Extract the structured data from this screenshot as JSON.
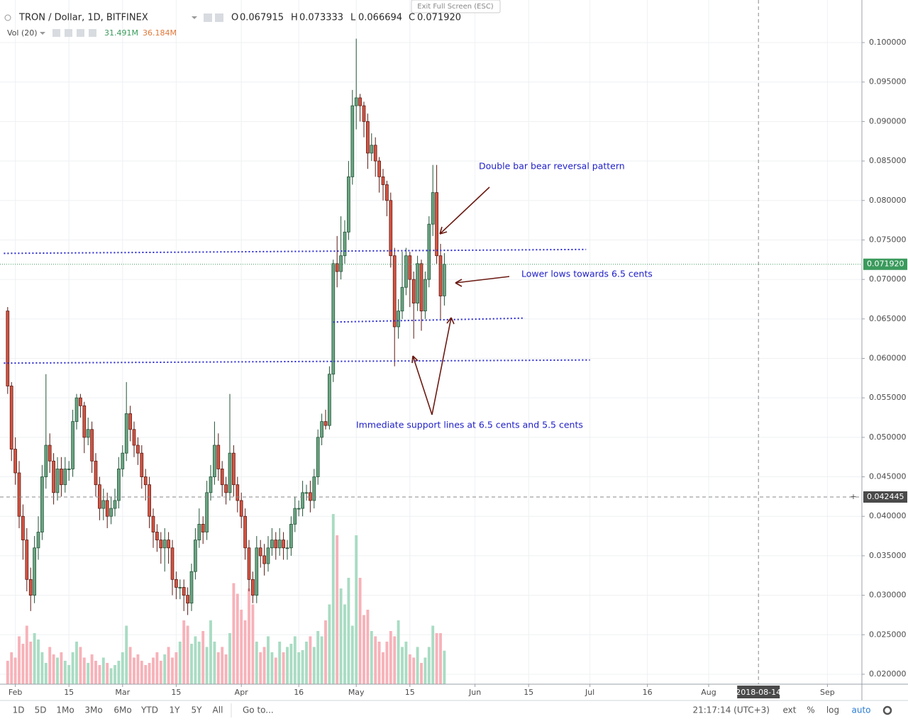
{
  "chart_data": {
    "type": "candlestick",
    "title": "TRON / Dollar, 1D, BITFINEX",
    "exit_fullscreen": "Exit Full Screen (ESC)",
    "ohlc_keys": [
      "O",
      "H",
      "L",
      "C"
    ],
    "volume_title": "Vol (20)",
    "volume_legend": [
      "31.491M",
      "36.184M"
    ],
    "x": [
      "2018-01-30",
      "2018-01-31",
      "2018-02-01",
      "2018-02-02",
      "2018-02-03",
      "2018-02-04",
      "2018-02-05",
      "2018-02-06",
      "2018-02-07",
      "2018-02-08",
      "2018-02-09",
      "2018-02-10",
      "2018-02-11",
      "2018-02-12",
      "2018-02-13",
      "2018-02-14",
      "2018-02-15",
      "2018-02-16",
      "2018-02-17",
      "2018-02-18",
      "2018-02-19",
      "2018-02-20",
      "2018-02-21",
      "2018-02-22",
      "2018-02-23",
      "2018-02-24",
      "2018-02-25",
      "2018-02-26",
      "2018-02-27",
      "2018-02-28",
      "2018-03-01",
      "2018-03-02",
      "2018-03-03",
      "2018-03-04",
      "2018-03-05",
      "2018-03-06",
      "2018-03-07",
      "2018-03-08",
      "2018-03-09",
      "2018-03-10",
      "2018-03-11",
      "2018-03-12",
      "2018-03-13",
      "2018-03-14",
      "2018-03-15",
      "2018-03-16",
      "2018-03-17",
      "2018-03-18",
      "2018-03-19",
      "2018-03-20",
      "2018-03-21",
      "2018-03-22",
      "2018-03-23",
      "2018-03-24",
      "2018-03-25",
      "2018-03-26",
      "2018-03-27",
      "2018-03-28",
      "2018-03-29",
      "2018-03-30",
      "2018-03-31",
      "2018-04-01",
      "2018-04-02",
      "2018-04-03",
      "2018-04-04",
      "2018-04-05",
      "2018-04-06",
      "2018-04-07",
      "2018-04-08",
      "2018-04-09",
      "2018-04-10",
      "2018-04-11",
      "2018-04-12",
      "2018-04-13",
      "2018-04-14",
      "2018-04-15",
      "2018-04-16",
      "2018-04-17",
      "2018-04-18",
      "2018-04-19",
      "2018-04-20",
      "2018-04-21",
      "2018-04-22",
      "2018-04-23",
      "2018-04-24",
      "2018-04-25",
      "2018-04-26",
      "2018-04-27",
      "2018-04-28",
      "2018-04-29",
      "2018-04-30",
      "2018-05-01",
      "2018-05-02",
      "2018-05-03",
      "2018-05-04",
      "2018-05-05",
      "2018-05-06",
      "2018-05-07",
      "2018-05-08",
      "2018-05-09",
      "2018-05-10",
      "2018-05-11",
      "2018-05-12",
      "2018-05-13",
      "2018-05-14",
      "2018-05-15",
      "2018-05-16",
      "2018-05-17",
      "2018-05-18",
      "2018-05-19",
      "2018-05-20",
      "2018-05-21",
      "2018-05-22",
      "2018-05-23",
      "2018-05-24"
    ],
    "open": [
      0.066,
      0.0565,
      0.0485,
      0.0455,
      0.04,
      0.037,
      0.032,
      0.03,
      0.036,
      0.038,
      0.045,
      0.049,
      0.047,
      0.043,
      0.046,
      0.044,
      0.046,
      0.046,
      0.052,
      0.055,
      0.054,
      0.05,
      0.051,
      0.047,
      0.044,
      0.041,
      0.042,
      0.04,
      0.041,
      0.042,
      0.046,
      0.048,
      0.053,
      0.051,
      0.049,
      0.048,
      0.045,
      0.044,
      0.04,
      0.038,
      0.037,
      0.036,
      0.037,
      0.036,
      0.032,
      0.031,
      0.031,
      0.03,
      0.029,
      0.033,
      0.037,
      0.039,
      0.038,
      0.043,
      0.045,
      0.049,
      0.046,
      0.044,
      0.043,
      0.048,
      0.044,
      0.042,
      0.04,
      0.036,
      0.032,
      0.03,
      0.036,
      0.035,
      0.034,
      0.036,
      0.037,
      0.036,
      0.037,
      0.036,
      0.036,
      0.039,
      0.041,
      0.041,
      0.043,
      0.043,
      0.042,
      0.045,
      0.05,
      0.052,
      0.0515,
      0.058,
      0.072,
      0.071,
      0.073,
      0.076,
      0.083,
      0.092,
      0.093,
      0.092,
      0.09,
      0.086,
      0.087,
      0.085,
      0.083,
      0.082,
      0.08,
      0.073,
      0.064,
      0.066,
      0.069,
      0.073,
      0.07,
      0.067,
      0.072,
      0.066,
      0.07,
      0.077,
      0.081,
      0.073,
      0.067915
    ],
    "high": [
      0.0665,
      0.057,
      0.05,
      0.047,
      0.0415,
      0.0385,
      0.0335,
      0.0375,
      0.04,
      0.0465,
      0.058,
      0.0505,
      0.048,
      0.0475,
      0.0475,
      0.0475,
      0.047,
      0.0535,
      0.0555,
      0.0555,
      0.0545,
      0.0525,
      0.052,
      0.048,
      0.045,
      0.0435,
      0.043,
      0.0425,
      0.0435,
      0.0475,
      0.049,
      0.057,
      0.054,
      0.052,
      0.05,
      0.049,
      0.046,
      0.045,
      0.041,
      0.039,
      0.038,
      0.0385,
      0.038,
      0.037,
      0.033,
      0.032,
      0.032,
      0.031,
      0.034,
      0.0385,
      0.041,
      0.04,
      0.0445,
      0.0465,
      0.052,
      0.0505,
      0.047,
      0.045,
      0.0555,
      0.049,
      0.045,
      0.043,
      0.041,
      0.037,
      0.033,
      0.0375,
      0.037,
      0.0365,
      0.0375,
      0.0385,
      0.038,
      0.0385,
      0.038,
      0.037,
      0.04,
      0.0425,
      0.042,
      0.0445,
      0.044,
      0.0445,
      0.046,
      0.051,
      0.053,
      0.0535,
      0.059,
      0.0725,
      0.0755,
      0.078,
      0.0775,
      0.085,
      0.094,
      0.1005,
      0.0935,
      0.0925,
      0.091,
      0.0885,
      0.088,
      0.0855,
      0.084,
      0.0825,
      0.081,
      0.074,
      0.0675,
      0.0735,
      0.074,
      0.0735,
      0.071,
      0.073,
      0.0725,
      0.071,
      0.078,
      0.0845,
      0.0845,
      0.0745,
      0.073333
    ],
    "low": [
      0.0555,
      0.047,
      0.044,
      0.0385,
      0.0345,
      0.0305,
      0.028,
      0.029,
      0.0345,
      0.037,
      0.0435,
      0.0455,
      0.0415,
      0.042,
      0.0425,
      0.043,
      0.0445,
      0.045,
      0.051,
      0.0525,
      0.048,
      0.049,
      0.0455,
      0.0425,
      0.0395,
      0.0395,
      0.0385,
      0.039,
      0.04,
      0.041,
      0.045,
      0.047,
      0.0495,
      0.0475,
      0.0465,
      0.0435,
      0.042,
      0.0385,
      0.036,
      0.0355,
      0.034,
      0.033,
      0.034,
      0.03,
      0.0295,
      0.0295,
      0.028,
      0.0275,
      0.028,
      0.032,
      0.036,
      0.0365,
      0.037,
      0.042,
      0.044,
      0.0445,
      0.0425,
      0.0415,
      0.042,
      0.0425,
      0.0405,
      0.0385,
      0.0345,
      0.0305,
      0.029,
      0.029,
      0.0335,
      0.0325,
      0.033,
      0.035,
      0.0345,
      0.035,
      0.0345,
      0.0345,
      0.035,
      0.038,
      0.04,
      0.04,
      0.042,
      0.0405,
      0.041,
      0.044,
      0.049,
      0.051,
      0.051,
      0.057,
      0.069,
      0.07,
      0.072,
      0.075,
      0.082,
      0.089,
      0.09,
      0.088,
      0.084,
      0.085,
      0.083,
      0.081,
      0.08,
      0.078,
      0.0715,
      0.059,
      0.0625,
      0.065,
      0.068,
      0.0665,
      0.0625,
      0.066,
      0.0635,
      0.065,
      0.069,
      0.0755,
      0.072,
      0.065,
      0.066694
    ],
    "close": [
      0.0565,
      0.0485,
      0.0455,
      0.04,
      0.037,
      0.032,
      0.03,
      0.036,
      0.038,
      0.045,
      0.049,
      0.047,
      0.043,
      0.046,
      0.044,
      0.046,
      0.046,
      0.052,
      0.055,
      0.054,
      0.05,
      0.051,
      0.047,
      0.044,
      0.041,
      0.042,
      0.04,
      0.041,
      0.042,
      0.046,
      0.048,
      0.053,
      0.051,
      0.049,
      0.048,
      0.045,
      0.044,
      0.04,
      0.038,
      0.037,
      0.036,
      0.037,
      0.036,
      0.032,
      0.031,
      0.031,
      0.03,
      0.029,
      0.033,
      0.037,
      0.039,
      0.038,
      0.043,
      0.045,
      0.049,
      0.046,
      0.044,
      0.043,
      0.048,
      0.044,
      0.042,
      0.04,
      0.036,
      0.032,
      0.03,
      0.036,
      0.035,
      0.034,
      0.036,
      0.037,
      0.036,
      0.037,
      0.036,
      0.036,
      0.039,
      0.041,
      0.041,
      0.043,
      0.043,
      0.042,
      0.045,
      0.05,
      0.052,
      0.0515,
      0.058,
      0.072,
      0.071,
      0.073,
      0.076,
      0.083,
      0.092,
      0.093,
      0.092,
      0.09,
      0.086,
      0.087,
      0.085,
      0.083,
      0.082,
      0.08,
      0.073,
      0.064,
      0.066,
      0.069,
      0.073,
      0.07,
      0.067,
      0.072,
      0.066,
      0.07,
      0.077,
      0.081,
      0.073,
      0.0679,
      0.07192
    ],
    "volume": [
      22,
      30,
      25,
      45,
      38,
      55,
      40,
      48,
      42,
      30,
      20,
      35,
      28,
      25,
      30,
      22,
      18,
      30,
      40,
      35,
      25,
      20,
      28,
      22,
      18,
      25,
      20,
      15,
      18,
      22,
      30,
      55,
      35,
      25,
      28,
      22,
      18,
      20,
      25,
      30,
      22,
      28,
      35,
      25,
      30,
      40,
      60,
      55,
      38,
      45,
      40,
      50,
      35,
      60,
      40,
      30,
      35,
      28,
      48,
      95,
      85,
      70,
      60,
      90,
      75,
      40,
      30,
      35,
      45,
      30,
      25,
      40,
      30,
      35,
      38,
      45,
      30,
      32,
      40,
      45,
      35,
      50,
      45,
      60,
      75,
      160,
      140,
      90,
      75,
      100,
      55,
      140,
      100,
      65,
      70,
      50,
      45,
      40,
      30,
      40,
      50,
      45,
      60,
      35,
      40,
      28,
      25,
      35,
      20,
      25,
      35,
      55,
      48,
      48,
      31.491
    ],
    "up_color": "#6ba583",
    "down_color": "#d75442",
    "volume_up_color": "#a9dcc3",
    "volume_down_color": "#f7b2b9",
    "xlim": [
      "2018-01-28",
      "2018-09-10"
    ],
    "xticks": [
      {
        "value": "2018-02-01",
        "label": "Feb"
      },
      {
        "value": "2018-02-15",
        "label": "15"
      },
      {
        "value": "2018-03-01",
        "label": "Mar"
      },
      {
        "value": "2018-03-15",
        "label": "15"
      },
      {
        "value": "2018-04-01",
        "label": "Apr"
      },
      {
        "value": "2018-04-16",
        "label": "16"
      },
      {
        "value": "2018-05-01",
        "label": "May"
      },
      {
        "value": "2018-05-15",
        "label": "15"
      },
      {
        "value": "2018-06-01",
        "label": "Jun"
      },
      {
        "value": "2018-06-15",
        "label": "15"
      },
      {
        "value": "2018-07-01",
        "label": "Jul"
      },
      {
        "value": "2018-07-16",
        "label": "16"
      },
      {
        "value": "2018-08-01",
        "label": "Aug"
      },
      {
        "value": "2018-09-01",
        "label": "Sep"
      }
    ],
    "ylim": [
      0.01874,
      0.10539
    ],
    "yticks": [
      {
        "value": 0.02,
        "label": "0.020000"
      },
      {
        "value": 0.025,
        "label": "0.025000"
      },
      {
        "value": 0.03,
        "label": "0.030000"
      },
      {
        "value": 0.035,
        "label": "0.035000"
      },
      {
        "value": 0.04,
        "label": "0.040000"
      },
      {
        "value": 0.045,
        "label": "0.045000"
      },
      {
        "value": 0.05,
        "label": "0.050000"
      },
      {
        "value": 0.055,
        "label": "0.055000"
      },
      {
        "value": 0.06,
        "label": "0.060000"
      },
      {
        "value": 0.065,
        "label": "0.065000"
      },
      {
        "value": 0.07,
        "label": "0.070000"
      },
      {
        "value": 0.075,
        "label": "0.075000"
      },
      {
        "value": 0.08,
        "label": "0.080000"
      },
      {
        "value": 0.085,
        "label": "0.085000"
      },
      {
        "value": 0.09,
        "label": "0.090000"
      },
      {
        "value": 0.095,
        "label": "0.095000"
      },
      {
        "value": 0.1,
        "label": "0.100000"
      }
    ],
    "volume_ylim": [
      0,
      160
    ],
    "grid": true,
    "last_price": {
      "value": 0.07192,
      "label": "0.071920"
    },
    "crosshair": {
      "x": "2018-08-14",
      "y": 0.042445
    },
    "trendline_color": "#2b2bd0",
    "trendlines": [
      {
        "x": [
          "2018-01-29",
          "2018-06-30"
        ],
        "y": [
          0.0733,
          0.0738
        ]
      },
      {
        "x": [
          "2018-04-25",
          "2018-06-14"
        ],
        "y": [
          0.0646,
          0.0651
        ]
      },
      {
        "x": [
          "2018-01-29",
          "2018-07-01"
        ],
        "y": [
          0.0594,
          0.0598
        ]
      }
    ],
    "annotations": [
      "Double bar bear reversal pattern",
      "Lower lows towards 6.5 cents",
      "Immediate support lines at 6.5 cents and 5.5 cents"
    ],
    "toolbar": {
      "ranges": [
        "1D",
        "5D",
        "1Mo",
        "3Mo",
        "6Mo",
        "YTD",
        "1Y",
        "5Y",
        "All"
      ],
      "goto": "Go to...",
      "time": "21:17:14 (UTC+3)",
      "options": [
        "ext",
        "%",
        "log",
        "auto"
      ]
    }
  }
}
